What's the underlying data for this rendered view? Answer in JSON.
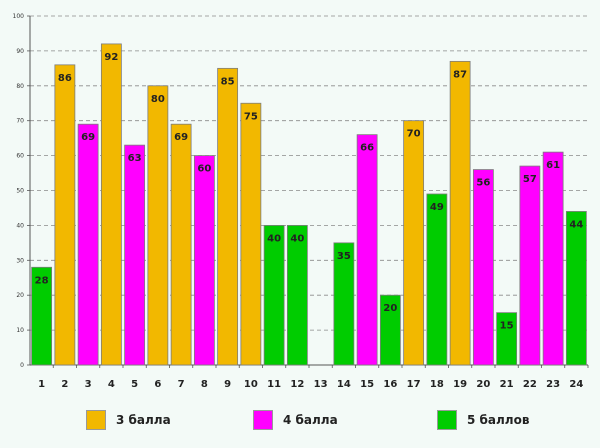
{
  "chart_data": {
    "type": "bar",
    "categories": [
      "1",
      "2",
      "3",
      "4",
      "5",
      "6",
      "7",
      "8",
      "9",
      "10",
      "11",
      "12",
      "13",
      "14",
      "15",
      "16",
      "17",
      "18",
      "19",
      "20",
      "21",
      "22",
      "23",
      "24"
    ],
    "values": [
      28,
      86,
      69,
      92,
      63,
      80,
      69,
      60,
      85,
      75,
      40,
      40,
      null,
      35,
      66,
      20,
      70,
      49,
      87,
      56,
      15,
      57,
      61,
      44
    ],
    "groups": [
      "5 баллов",
      "3 балла",
      "4 балла",
      "3 балла",
      "4 балла",
      "3 балла",
      "3 балла",
      "4 балла",
      "3 балла",
      "3 балла",
      "5 баллов",
      "5 баллов",
      null,
      "5 баллов",
      "4 балла",
      "5 баллов",
      "3 балла",
      "5 баллов",
      "3 балла",
      "4 балла",
      "5 баллов",
      "4 балла",
      "4 балла",
      "5 баллов"
    ],
    "legend": [
      {
        "label": "3 балла",
        "color": "#f2b800"
      },
      {
        "label": "4 балла",
        "color": "#ff00ff"
      },
      {
        "label": "5 баллов",
        "color": "#00cc00"
      }
    ],
    "yticks": [
      "0",
      "10",
      "20",
      "30",
      "40",
      "50",
      "60",
      "70",
      "80",
      "90",
      "100"
    ],
    "ylim": [
      0,
      100
    ],
    "grid": true,
    "legend_position": "bottom",
    "title": "",
    "xlabel": "",
    "ylabel": ""
  }
}
